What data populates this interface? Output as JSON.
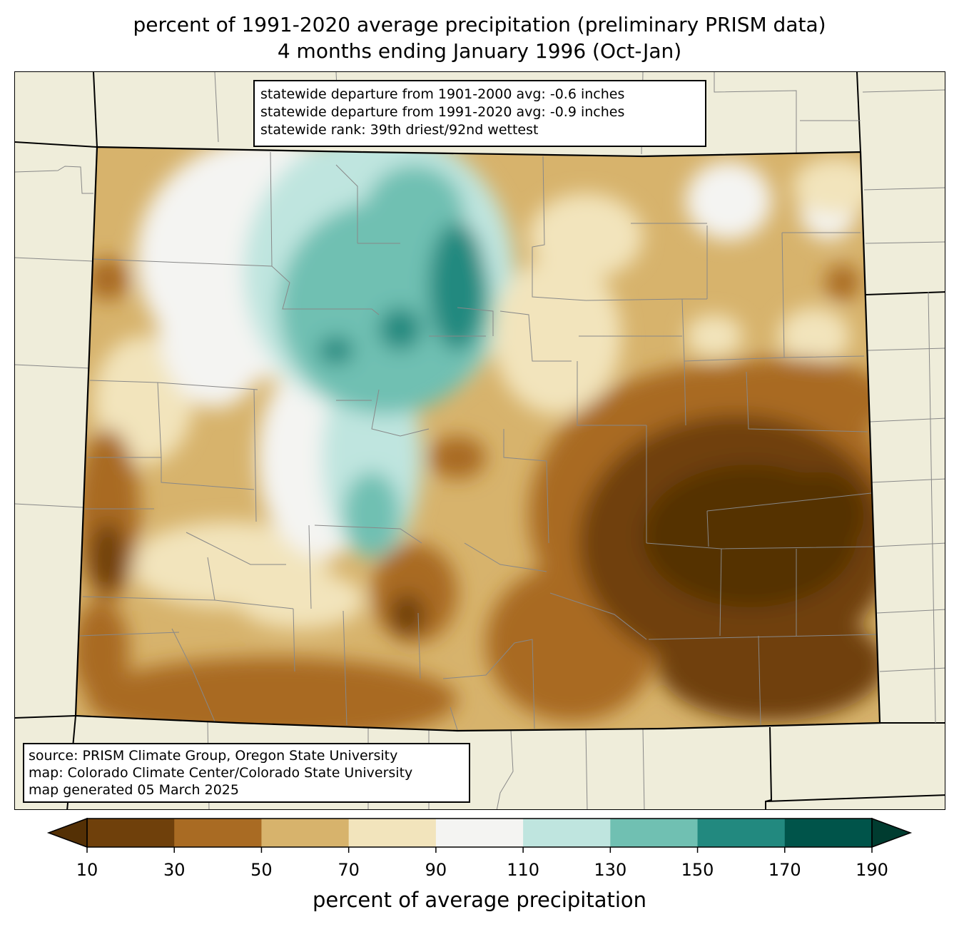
{
  "title": {
    "line1": "percent of 1991-2020 average precipitation (preliminary PRISM data)",
    "line2": "4 months ending January 1996 (Oct-Jan)"
  },
  "stats": {
    "line1": "statewide departure from 1901-2000 avg: -0.6 inches",
    "line2": "statewide departure from 1991-2020 avg: -0.9 inches",
    "line3": "statewide rank: 39th driest/92nd wettest"
  },
  "source": {
    "line1": "source: PRISM Climate Group, Oregon State University",
    "line2": "map: Colorado Climate Center/Colorado State University",
    "line3": "map generated 05 March 2025"
  },
  "colorbar": {
    "label": "percent of average precipitation",
    "ticks": [
      "10",
      "30",
      "50",
      "70",
      "90",
      "110",
      "130",
      "150",
      "170",
      "190"
    ],
    "under_color": "#543005",
    "over_color": "#003c30",
    "colors": [
      "#6f400b",
      "#a96b23",
      "#d7b36c",
      "#f2e4bc",
      "#f4f4f2",
      "#bfe5df",
      "#70c0b2",
      "#22897f",
      "#00544a"
    ]
  },
  "colors": {
    "land": "#efedda",
    "county_lines": "#888888",
    "state_lines": "#000000"
  }
}
